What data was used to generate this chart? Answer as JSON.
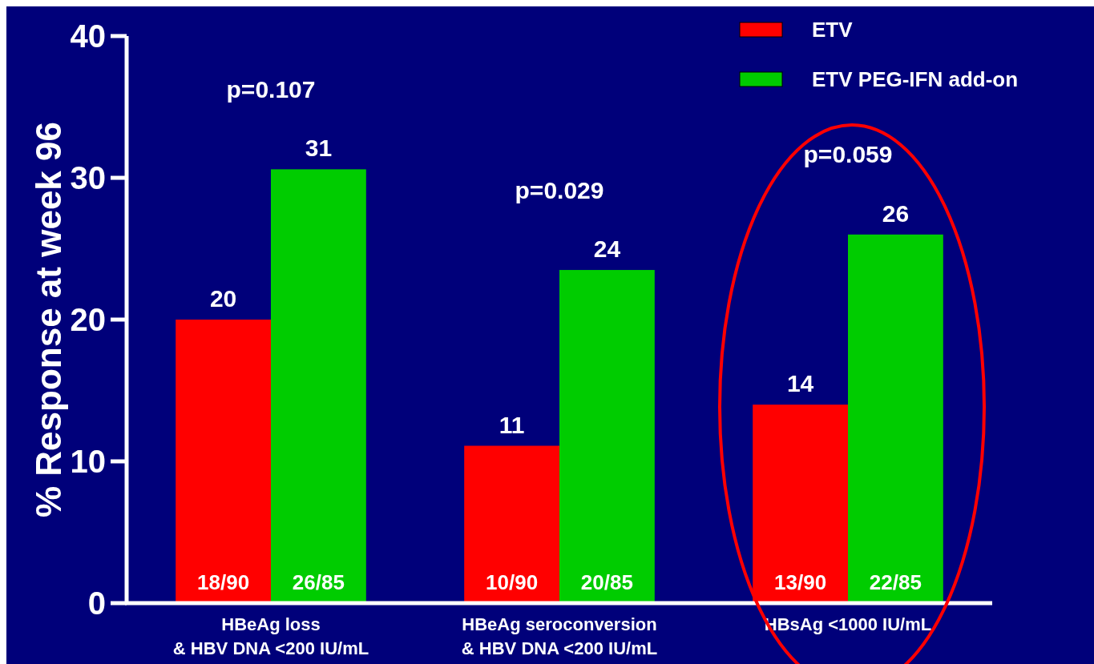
{
  "chart_data": {
    "type": "bar",
    "ylabel": "% Response at week 96",
    "categories": [
      "HBeAg loss\n& HBV DNA <200 IU/mL",
      "HBeAg seroconversion\n& HBV DNA <200 IU/mL",
      "HBsAg <1000 IU/mL"
    ],
    "series": [
      {
        "name": "ETV",
        "color": "#ff0000",
        "values": [
          20,
          11.1,
          14
        ],
        "value_labels": [
          "20",
          "11",
          "14"
        ]
      },
      {
        "name": "ETV PEG-IFN add-on",
        "color": "#00cc00",
        "values": [
          30.6,
          23.5,
          26
        ],
        "value_labels": [
          "31",
          "24",
          "26"
        ]
      }
    ],
    "ylim": [
      0,
      40
    ],
    "yticks": [
      0,
      10,
      20,
      30,
      40
    ],
    "grid": false,
    "legend": "top right",
    "annotations": [
      "p=0.107",
      "p=0.029",
      "p=0.059",
      {
        "text": "18/90",
        "x": "HBeAg loss\n& HBV DNA <200 IU/mL",
        "y": 1.5
      },
      {
        "text": "26/85",
        "x": "HBeAg loss\n& HBV DNA <200 IU/mL",
        "y": 1.5
      },
      {
        "text": "10/90",
        "x": "HBeAg seroconversion\n& HBV DNA <200 IU/mL",
        "y": 1.5
      },
      {
        "text": "20/85",
        "x": "HBeAg seroconversion\n& HBV DNA <200 IU/mL",
        "y": 1.5
      },
      {
        "text": "13/90",
        "x": "HBsAg <1000 IU/mL",
        "y": 1.5
      },
      {
        "text": "22/85",
        "x": "HBsAg <1000 IU/mL",
        "y": 1.5
      }
    ]
  }
}
